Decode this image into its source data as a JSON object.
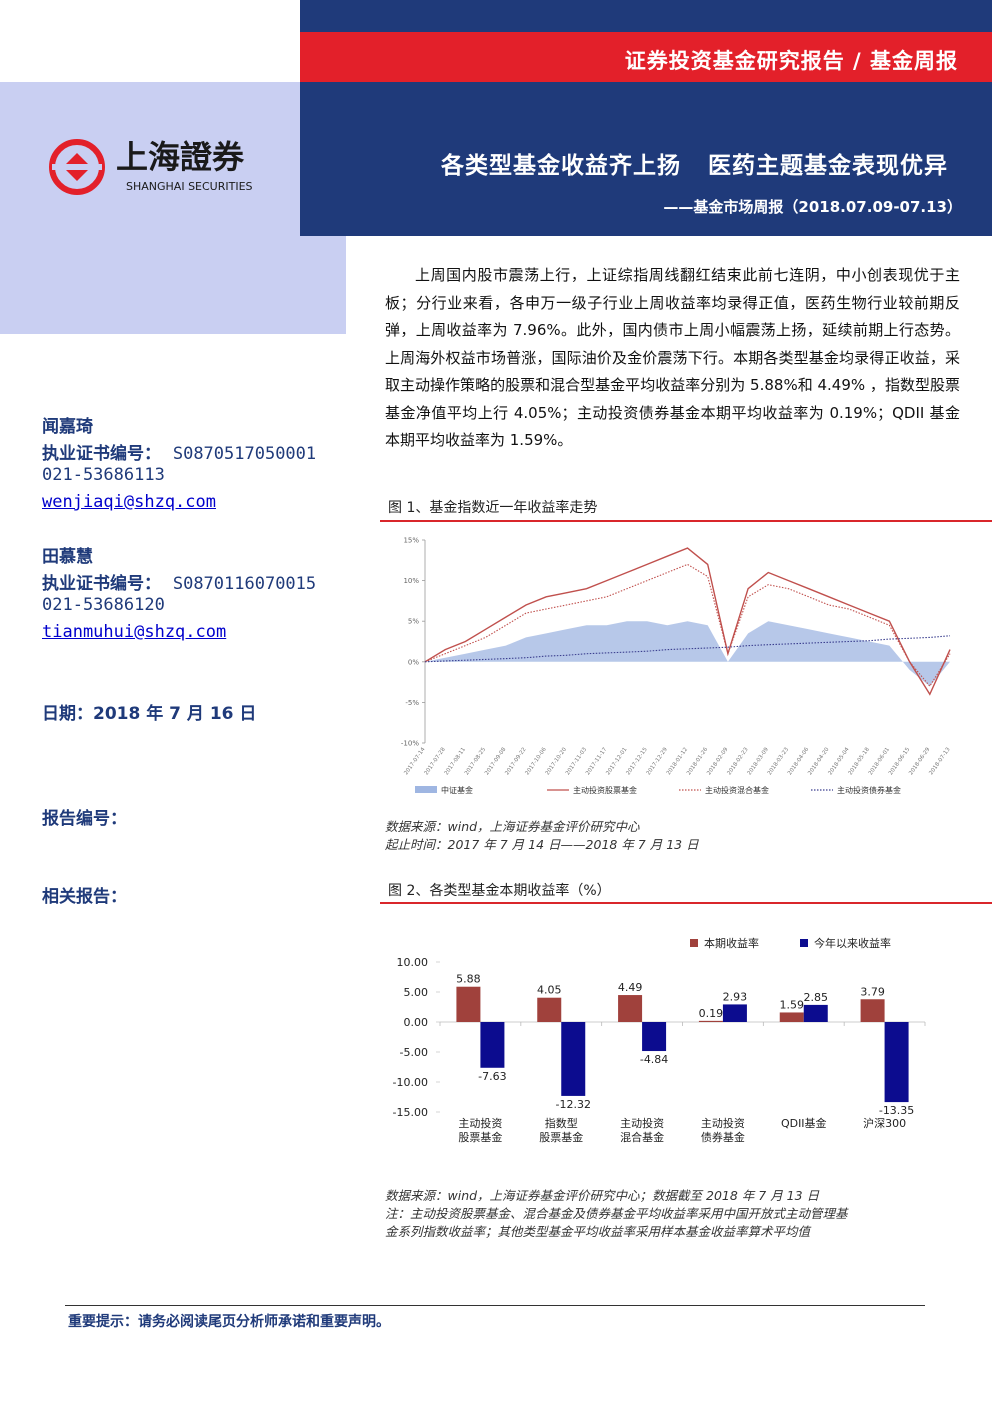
{
  "header": {
    "category": "证券投资基金研究报告 / 基金周报",
    "title": "各类型基金收益齐上扬   医药主题基金表现优异",
    "subtitle": "——基金市场周报（2018.07.09-07.13）",
    "logo_cn": "上海證券",
    "logo_en": "SHANGHAI SECURITIES"
  },
  "sidebar": {
    "authors": [
      {
        "name": "闻嘉琦",
        "cert_label": "执业证书编号：",
        "cert": "S0870517050001",
        "phone": "021-53686113",
        "email": "wenjiaqi@shzq.com"
      },
      {
        "name": "田慕慧",
        "cert_label": "执业证书编号：",
        "cert": "S0870116070015",
        "phone": "021-53686120",
        "email": "tianmuhui@shzq.com"
      }
    ],
    "date": "日期：2018 年 7 月 16 日",
    "report_no_label": "报告编号：",
    "related_label": "相关报告："
  },
  "body": {
    "paragraph": "上周国内股市震荡上行，上证综指周线翻红结束此前七连阴，中小创表现优于主板；分行业来看，各申万一级子行业上周收益率均录得正值，医药生物行业较前期反弹，上周收益率为 7.96%。此外，国内债市上周小幅震荡上扬，延续前期上行态势。上周海外权益市场普涨，国际油价及金价震荡下行。本期各类型基金均录得正收益，采取主动操作策略的股票和混合型基金平均收益率分别为 5.88%和 4.49% ，指数型股票基金净值平均上行 4.05%；主动投资债券基金本期平均收益率为 0.19%；QDII 基金本期平均收益率为 1.59%。"
  },
  "chart_data": [
    {
      "type": "line",
      "title": "图 1、基金指数近一年收益率走势",
      "categories": [
        "2017-07-14",
        "2017-07-28",
        "2017-08-11",
        "2017-08-25",
        "2017-09-08",
        "2017-09-22",
        "2017-10-06",
        "2017-10-20",
        "2017-11-03",
        "2017-11-17",
        "2017-12-01",
        "2017-12-15",
        "2017-12-29",
        "2018-01-12",
        "2018-01-26",
        "2018-02-09",
        "2018-02-23",
        "2018-03-09",
        "2018-03-23",
        "2018-04-06",
        "2018-04-20",
        "2018-05-04",
        "2018-05-18",
        "2018-06-01",
        "2018-06-15",
        "2018-06-29",
        "2018-07-13"
      ],
      "series": [
        {
          "name": "中证基金",
          "color": "#9fb6e2",
          "kind": "area",
          "values": [
            0,
            0.5,
            1,
            1.5,
            2,
            3,
            3.5,
            4,
            4.5,
            4.5,
            5,
            5,
            4.5,
            5,
            4.5,
            0,
            3.5,
            5,
            4.5,
            4,
            3.5,
            3,
            2.5,
            2,
            -1,
            -3,
            0
          ]
        },
        {
          "name": "主动投资股票基金",
          "color": "#c0504d",
          "kind": "solid",
          "values": [
            0,
            1.5,
            2.5,
            4,
            5.5,
            7,
            8,
            8.5,
            9,
            10,
            11,
            12,
            13,
            14,
            12,
            1,
            9,
            11,
            10,
            9,
            8,
            7,
            6,
            5,
            0,
            -4,
            1.5
          ]
        },
        {
          "name": "主动投资混合基金",
          "color": "#c0504d",
          "kind": "dotted",
          "values": [
            0,
            1,
            2,
            3,
            4.5,
            6,
            6.5,
            7,
            7.5,
            8,
            9,
            10,
            11,
            12,
            10.5,
            1,
            8,
            9.5,
            9,
            8,
            7,
            6.5,
            5.5,
            4.5,
            0,
            -3,
            1
          ]
        },
        {
          "name": "主动投资债券基金",
          "color": "#3b3f8f",
          "kind": "dotted",
          "values": [
            0,
            0.1,
            0.2,
            0.3,
            0.4,
            0.5,
            0.7,
            0.8,
            1,
            1.1,
            1.2,
            1.3,
            1.5,
            1.6,
            1.7,
            1.8,
            2,
            2.1,
            2.2,
            2.3,
            2.4,
            2.5,
            2.6,
            2.8,
            2.9,
            3,
            3.2
          ]
        }
      ],
      "ylim": [
        -10,
        15
      ],
      "yticks": [
        {
          "value": 15,
          "label": "15%"
        },
        {
          "value": 10,
          "label": "10%"
        },
        {
          "value": 5,
          "label": "5%"
        },
        {
          "value": 0,
          "label": "0%"
        },
        {
          "value": -5,
          "label": "-5%"
        },
        {
          "value": -10,
          "label": "-10%"
        }
      ],
      "legend": "bottom"
    },
    {
      "type": "bar",
      "title": "图 2、各类型基金本期收益率（%）",
      "categories": [
        [
          "主动投资",
          "股票基金"
        ],
        [
          "指数型",
          "股票基金"
        ],
        [
          "主动投资",
          "混合基金"
        ],
        [
          "主动投资",
          "债券基金"
        ],
        [
          "QDII基金"
        ],
        [
          "沪深300"
        ]
      ],
      "series": [
        {
          "name": "本期收益率",
          "color": "#a0413c",
          "values": [
            5.88,
            4.05,
            4.49,
            0.19,
            1.59,
            3.79
          ]
        },
        {
          "name": "今年以来收益率",
          "color": "#0c0c8f",
          "values": [
            -7.63,
            -12.32,
            -4.84,
            2.93,
            2.85,
            -13.35
          ]
        }
      ],
      "ylim": [
        -15,
        10
      ],
      "yticks": [
        {
          "value": 10,
          "label": "10.00"
        },
        {
          "value": 5,
          "label": "5.00"
        },
        {
          "value": 0,
          "label": "0.00"
        },
        {
          "value": -5,
          "label": "-5.00"
        },
        {
          "value": -10,
          "label": "-10.00"
        },
        {
          "value": -15,
          "label": "-15.00"
        }
      ],
      "legend": "top-right"
    }
  ],
  "figure_notes": [
    [
      "数据来源：wind，上海证券基金评价研究中心",
      "起止时间：2017 年 7 月 14 日——2018 年 7 月 13 日"
    ],
    [
      "数据来源：wind，上海证券基金评价研究中心；数据截至 2018 年 7 月 13 日",
      "注：主动投资股票基金、混合基金及债券基金平均收益率采用中国开放式主动管理基",
      "金系列指数收益率；其他类型基金平均收益率采用样本基金收益率算术平均值"
    ]
  ],
  "footer": "重要提示：请务必阅读尾页分析师承诺和重要声明。"
}
